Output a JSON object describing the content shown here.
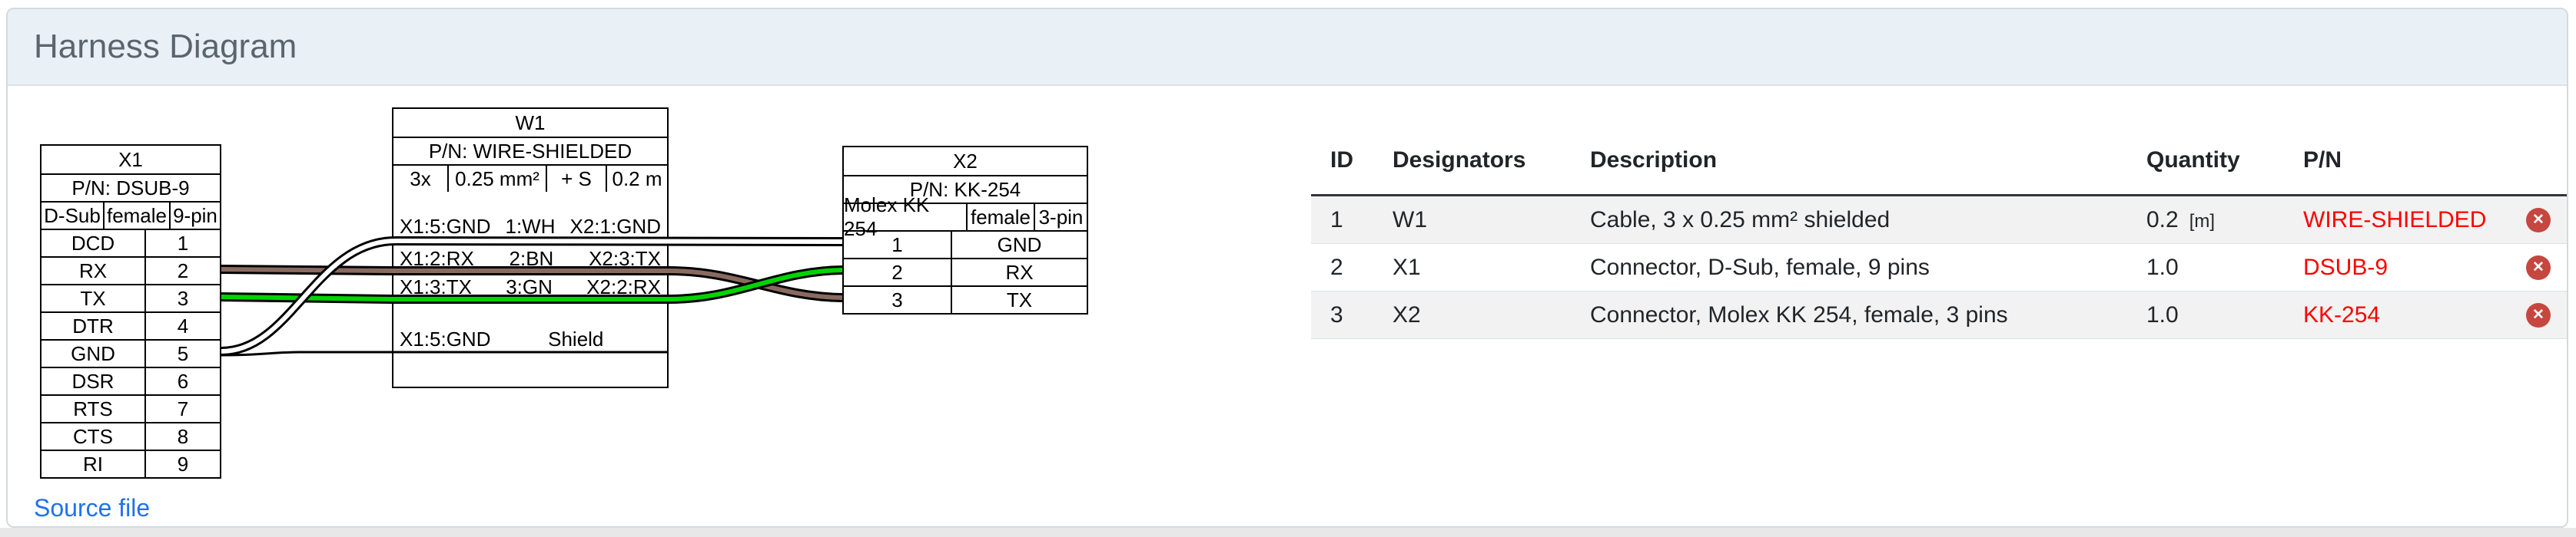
{
  "header": {
    "title": "Harness Diagram"
  },
  "diagram": {
    "x1": {
      "designator": "X1",
      "pn": "P/N: DSUB-9",
      "type": [
        "D-Sub",
        "female",
        "9-pin"
      ],
      "pins": [
        {
          "name": "DCD",
          "num": "1"
        },
        {
          "name": "RX",
          "num": "2"
        },
        {
          "name": "TX",
          "num": "3"
        },
        {
          "name": "DTR",
          "num": "4"
        },
        {
          "name": "GND",
          "num": "5"
        },
        {
          "name": "DSR",
          "num": "6"
        },
        {
          "name": "RTS",
          "num": "7"
        },
        {
          "name": "CTS",
          "num": "8"
        },
        {
          "name": "RI",
          "num": "9"
        }
      ]
    },
    "w1": {
      "designator": "W1",
      "pn": "P/N: WIRE-SHIELDED",
      "spec": [
        "3x",
        "0.25 mm²",
        "+ S",
        "0.2 m"
      ],
      "wires": [
        {
          "left": "X1:5:GND",
          "mid": "1:WH",
          "right": "X2:1:GND",
          "color": "#ffffff"
        },
        {
          "left": "X1:2:RX",
          "mid": "2:BN",
          "right": "X2:3:TX",
          "color": "#8a6a60"
        },
        {
          "left": "X1:3:TX",
          "mid": "3:GN",
          "right": "X2:2:RX",
          "color": "#00d400"
        },
        {
          "left": "X1:5:GND",
          "mid": "Shield",
          "right": "",
          "color": "#000000"
        }
      ]
    },
    "x2": {
      "designator": "X2",
      "pn": "P/N: KK-254",
      "type": [
        "Molex KK 254",
        "female",
        "3-pin"
      ],
      "pins": [
        {
          "num": "1",
          "name": "GND"
        },
        {
          "num": "2",
          "name": "RX"
        },
        {
          "num": "3",
          "name": "TX"
        }
      ]
    },
    "source_link": "Source file"
  },
  "bom": {
    "columns": [
      "ID",
      "Designators",
      "Description",
      "Quantity",
      "P/N"
    ],
    "rows": [
      {
        "id": "1",
        "designators": "W1",
        "description": "Cable, 3 x 0.25 mm² shielded",
        "quantity": "0.2",
        "unit": "[m]",
        "pn": "WIRE-SHIELDED"
      },
      {
        "id": "2",
        "designators": "X1",
        "description": "Connector, D-Sub, female, 9 pins",
        "quantity": "1.0",
        "unit": "",
        "pn": "DSUB-9"
      },
      {
        "id": "3",
        "designators": "X2",
        "description": "Connector, Molex KK 254, female, 3 pins",
        "quantity": "1.0",
        "unit": "",
        "pn": "KK-254"
      }
    ],
    "delete_glyph": "✕",
    "pn_color": "#fe0000",
    "accent_red": "#c5473f"
  }
}
